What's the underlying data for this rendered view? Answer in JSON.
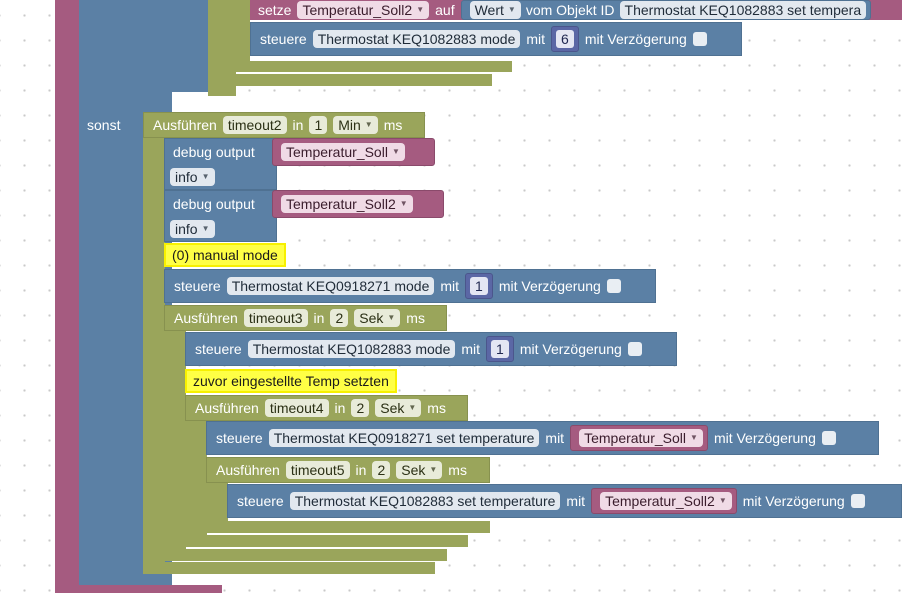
{
  "top": {
    "setze": {
      "label": "setze",
      "var": "Temperatur_Soll2",
      "auf": "auf",
      "wert": "Wert",
      "vom": "vom Objekt ID",
      "object": "Thermostat KEQ1082883 set tempera"
    },
    "steuere": {
      "label": "steuere",
      "object": "Thermostat KEQ1082883 mode",
      "mit": "mit",
      "value": "6",
      "delay": "mit Verzögerung"
    }
  },
  "else_label": "sonst",
  "timeout2": {
    "label": "Ausführen",
    "name": "timeout2",
    "in": "in",
    "value": "1",
    "unit": "Min",
    "ms": "ms"
  },
  "debug1": {
    "label": "debug output",
    "var": "Temperatur_Soll",
    "level": "info"
  },
  "debug2": {
    "label": "debug output",
    "var": "Temperatur_Soll2",
    "level": "info"
  },
  "comment1": "(0) manual mode",
  "steuere2": {
    "label": "steuere",
    "object": "Thermostat KEQ0918271 mode",
    "mit": "mit",
    "value": "1",
    "delay": "mit Verzögerung"
  },
  "timeout3": {
    "label": "Ausführen",
    "name": "timeout3",
    "in": "in",
    "value": "2",
    "unit": "Sek",
    "ms": "ms"
  },
  "steuere3": {
    "label": "steuere",
    "object": "Thermostat KEQ1082883 mode",
    "mit": "mit",
    "value": "1",
    "delay": "mit Verzögerung"
  },
  "comment2": "zuvor eingestellte Temp setzten",
  "timeout4": {
    "label": "Ausführen",
    "name": "timeout4",
    "in": "in",
    "value": "2",
    "unit": "Sek",
    "ms": "ms"
  },
  "steuere4": {
    "label": "steuere",
    "object": "Thermostat KEQ0918271 set temperature",
    "mit": "mit",
    "var": "Temperatur_Soll",
    "delay": "mit Verzögerung"
  },
  "timeout5": {
    "label": "Ausführen",
    "name": "timeout5",
    "in": "in",
    "value": "2",
    "unit": "Sek",
    "ms": "ms"
  },
  "steuere5": {
    "label": "steuere",
    "object": "Thermostat KEQ1082883 set temperature",
    "mit": "mit",
    "var": "Temperatur_Soll2",
    "delay": "mit Verzögerung"
  },
  "colors": {
    "logic": "#5b80a5",
    "variable": "#a55b80",
    "timeout": "#9aa55b",
    "comment": "#ffff45"
  }
}
